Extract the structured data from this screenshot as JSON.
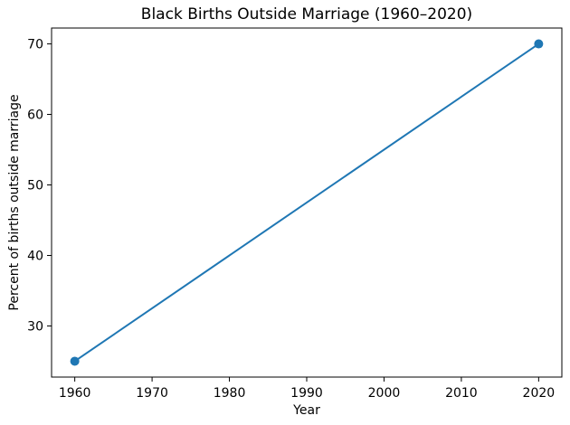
{
  "chart_data": {
    "type": "line",
    "title": "Black Births Outside Marriage (1960–2020)",
    "xlabel": "Year",
    "ylabel": "Percent of births outside marriage",
    "x": [
      1960,
      2020
    ],
    "y": [
      25,
      70
    ],
    "x_ticks": [
      "1960",
      "1970",
      "1980",
      "1990",
      "2000",
      "2010",
      "2020"
    ],
    "x_tick_values": [
      1960,
      1970,
      1980,
      1990,
      2000,
      2010,
      2020
    ],
    "y_ticks": [
      "30",
      "40",
      "50",
      "60",
      "70"
    ],
    "y_tick_values": [
      30,
      40,
      50,
      60,
      70
    ],
    "xlim": [
      1957,
      2023
    ],
    "ylim": [
      22.75,
      72.25
    ],
    "line_color": "#1f77b4",
    "marker": "circle",
    "grid": false,
    "legend": "none",
    "background_color": "#ffffff",
    "axis_color": "#000000"
  }
}
